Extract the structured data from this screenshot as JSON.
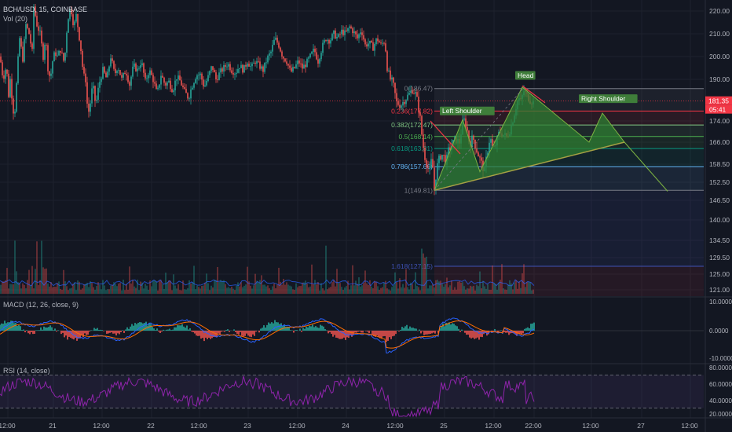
{
  "header": {
    "symbol": "BCH/USD, 15, COINBASE",
    "volume_label": "Vol (20)",
    "macd_label": "MACD (12, 26, close, 9)",
    "rsi_label": "RSI (14, close)"
  },
  "colors": {
    "background": "#131722",
    "candle_up": "#26a69a",
    "candle_down": "#ef5350",
    "pattern_fill": "#2e7d32",
    "pattern_line": "#7cb342",
    "rsi_line": "#8e24aa",
    "macd_line": "#2962ff",
    "signal_line": "#ff6d00"
  },
  "chart_data": [
    {
      "type": "candlestick",
      "title": "BCH/USD, 15, COINBASE",
      "price_axis_ticks": [
        220,
        210,
        200,
        190,
        174,
        166,
        158.5,
        152.5,
        146.5,
        140,
        134.5,
        129.5,
        125,
        121
      ],
      "price_axis_labels": [
        "220.00",
        "210.00",
        "200.00",
        "190.00",
        "174.00",
        "166.00",
        "158.50",
        "152.50",
        "146.50",
        "140.00",
        "134.50",
        "129.50",
        "125.00",
        "121.00"
      ],
      "time_axis_labels": [
        "12:00",
        "21",
        "12:00",
        "22",
        "12:00",
        "23",
        "12:00",
        "24",
        "12:00",
        "25",
        "12:00",
        "22:00",
        "12:00",
        "27",
        "12:00"
      ],
      "current_price_label": "181.35",
      "countdown_label": "05:41",
      "price_anchors": [
        [
          0,
          200
        ],
        [
          4,
          190
        ],
        [
          8,
          196
        ],
        [
          11,
          184
        ],
        [
          13,
          190
        ],
        [
          18,
          175
        ],
        [
          20,
          182
        ],
        [
          22,
          194
        ],
        [
          25,
          208
        ],
        [
          29,
          199
        ],
        [
          33,
          214
        ],
        [
          37,
          210
        ],
        [
          41,
          202
        ],
        [
          43,
          222
        ],
        [
          47,
          214
        ],
        [
          51,
          210
        ],
        [
          55,
          200
        ],
        [
          58,
          209
        ],
        [
          61,
          195
        ],
        [
          64,
          190
        ],
        [
          67,
          198
        ],
        [
          70,
          202
        ],
        [
          73,
          200
        ],
        [
          77,
          203
        ],
        [
          82,
          197
        ],
        [
          86,
          216
        ],
        [
          90,
          222
        ],
        [
          94,
          213
        ],
        [
          97,
          218
        ],
        [
          100,
          211
        ],
        [
          103,
          203
        ],
        [
          106,
          192
        ],
        [
          109,
          190
        ],
        [
          112,
          176
        ],
        [
          115,
          181
        ],
        [
          118,
          188
        ],
        [
          122,
          180
        ],
        [
          126,
          188
        ],
        [
          131,
          194
        ],
        [
          136,
          190
        ],
        [
          141,
          200
        ],
        [
          146,
          192
        ],
        [
          150,
          196
        ],
        [
          155,
          190
        ],
        [
          160,
          194
        ],
        [
          165,
          188
        ],
        [
          170,
          196
        ],
        [
          175,
          194
        ],
        [
          180,
          198
        ],
        [
          185,
          189
        ],
        [
          190,
          194
        ],
        [
          195,
          190
        ],
        [
          200,
          184
        ],
        [
          205,
          192
        ],
        [
          210,
          188
        ],
        [
          215,
          189
        ],
        [
          220,
          186
        ],
        [
          225,
          191
        ],
        [
          230,
          189
        ],
        [
          235,
          185
        ],
        [
          240,
          183
        ],
        [
          245,
          188
        ],
        [
          250,
          192
        ],
        [
          255,
          192
        ],
        [
          260,
          187
        ],
        [
          265,
          191
        ],
        [
          270,
          196
        ],
        [
          275,
          190
        ],
        [
          280,
          193
        ],
        [
          285,
          195
        ],
        [
          290,
          197
        ],
        [
          295,
          194
        ],
        [
          300,
          193
        ],
        [
          305,
          196
        ],
        [
          310,
          194
        ],
        [
          315,
          198
        ],
        [
          320,
          195
        ],
        [
          325,
          198
        ],
        [
          330,
          196
        ],
        [
          335,
          194
        ],
        [
          340,
          199
        ],
        [
          345,
          202
        ],
        [
          350,
          208
        ],
        [
          355,
          205
        ],
        [
          360,
          200
        ],
        [
          365,
          198
        ],
        [
          370,
          193
        ],
        [
          375,
          195
        ],
        [
          380,
          198
        ],
        [
          385,
          195
        ],
        [
          390,
          197
        ],
        [
          395,
          200
        ],
        [
          400,
          203
        ],
        [
          405,
          198
        ],
        [
          410,
          204
        ],
        [
          415,
          208
        ],
        [
          420,
          207
        ],
        [
          425,
          210
        ],
        [
          430,
          208
        ],
        [
          435,
          211
        ],
        [
          440,
          210
        ],
        [
          445,
          213
        ],
        [
          450,
          211
        ],
        [
          455,
          208
        ],
        [
          460,
          212
        ],
        [
          465,
          205
        ],
        [
          470,
          206
        ],
        [
          475,
          204
        ],
        [
          480,
          208
        ],
        [
          485,
          205
        ],
        [
          490,
          207
        ],
        [
          493,
          195
        ],
        [
          497,
          190
        ],
        [
          500,
          189
        ],
        [
          505,
          181
        ],
        [
          510,
          180
        ],
        [
          515,
          182
        ],
        [
          520,
          184
        ],
        [
          525,
          186
        ],
        [
          530,
          184
        ],
        [
          535,
          175
        ],
        [
          538,
          166
        ],
        [
          541,
          161
        ],
        [
          544,
          158
        ],
        [
          547,
          156
        ],
        [
          550,
          161
        ],
        [
          553,
          150
        ],
        [
          556,
          157
        ],
        [
          559,
          160
        ],
        [
          562,
          162
        ],
        [
          565,
          161
        ],
        [
          568,
          159
        ],
        [
          571,
          163
        ],
        [
          575,
          165
        ],
        [
          580,
          167
        ],
        [
          585,
          166
        ],
        [
          590,
          175
        ],
        [
          594,
          172
        ],
        [
          598,
          165
        ],
        [
          602,
          168
        ],
        [
          606,
          164
        ],
        [
          610,
          161
        ],
        [
          614,
          158
        ],
        [
          617,
          156
        ],
        [
          620,
          162
        ],
        [
          624,
          168
        ],
        [
          628,
          163
        ],
        [
          632,
          166
        ],
        [
          636,
          170
        ],
        [
          640,
          169
        ],
        [
          645,
          168
        ],
        [
          650,
          171
        ],
        [
          655,
          177
        ],
        [
          660,
          183
        ],
        [
          664,
          181
        ],
        [
          666,
          186
        ],
        [
          670,
          184
        ],
        [
          675,
          182
        ],
        [
          680,
          181
        ]
      ],
      "fib_levels": [
        {
          "label": "0(186.47)",
          "value": 186.47,
          "color": "#787b86"
        },
        {
          "label": "0.236(177.82)",
          "value": 177.82,
          "color": "#f23645"
        },
        {
          "label": "0.382(172.47)",
          "value": 172.47,
          "color": "#81c784"
        },
        {
          "label": "0.5(168.14)",
          "value": 168.14,
          "color": "#4caf50"
        },
        {
          "label": "0.618(163.81)",
          "value": 163.81,
          "color": "#089981"
        },
        {
          "label": "0.786(157.66)",
          "value": 157.66,
          "color": "#64b5f6"
        },
        {
          "label": "1(149.81)",
          "value": 149.81,
          "color": "#787b86"
        },
        {
          "label": "1.618(127.15)",
          "value": 127.15,
          "color": "#3f51b5"
        }
      ],
      "horizontal_line_value": 181.35,
      "pattern_labels": [
        "Left Shoulder",
        "Head",
        "Right Shoulder"
      ],
      "neckline_points": [
        [
          553,
          150
        ],
        [
          795,
          166
        ]
      ],
      "target_line_points": [
        [
          795,
          166
        ],
        [
          850,
          150
        ]
      ]
    },
    {
      "type": "bar",
      "title": "Vol (20)",
      "volume_shape": "spiky"
    },
    {
      "type": "line",
      "title": "MACD (12, 26, close, 9)",
      "y_axis_labels": [
        "10.0000",
        "0.0000",
        "-10.0000"
      ],
      "y_values": [
        10,
        0,
        -10
      ]
    },
    {
      "type": "line",
      "title": "RSI (14, close)",
      "y_axis_labels": [
        "80.0000",
        "60.0000",
        "40.0000",
        "20.0000"
      ],
      "y_values": [
        80,
        60,
        40,
        20
      ],
      "bands": [
        70,
        30
      ]
    }
  ]
}
